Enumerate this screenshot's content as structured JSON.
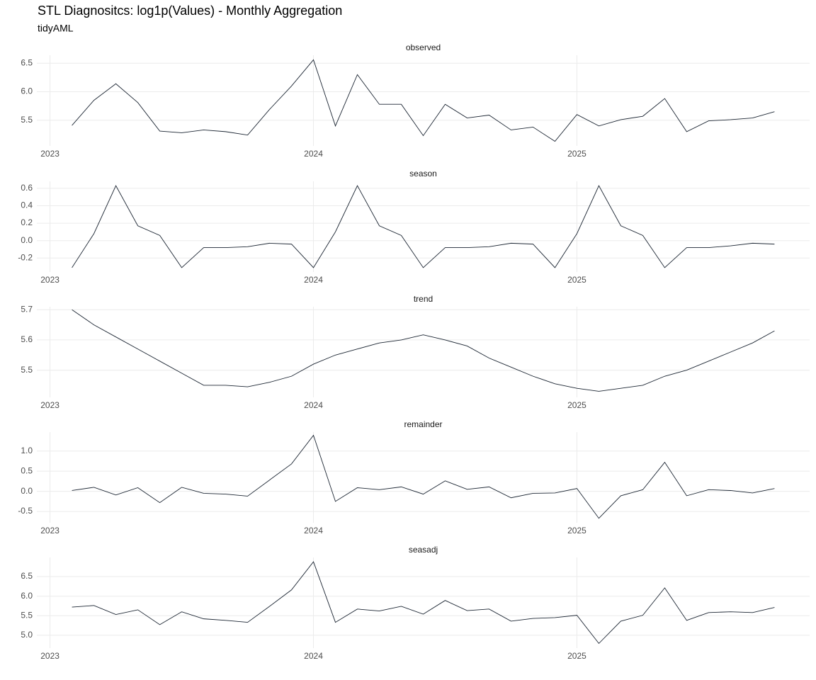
{
  "title": "STL Diagnositcs: log1p(Values) - Monthly Aggregation",
  "subtitle": "tidyAML",
  "chart_data": [
    {
      "type": "line",
      "title": "observed",
      "color": "#1c2633",
      "grid": true,
      "x": [
        "2023-02",
        "2023-03",
        "2023-04",
        "2023-05",
        "2023-06",
        "2023-07",
        "2023-08",
        "2023-09",
        "2023-10",
        "2023-11",
        "2023-12",
        "2024-01",
        "2024-02",
        "2024-03",
        "2024-04",
        "2024-05",
        "2024-06",
        "2024-07",
        "2024-08",
        "2024-09",
        "2024-10",
        "2024-11",
        "2024-12",
        "2025-01",
        "2025-02",
        "2025-03",
        "2025-04",
        "2025-05",
        "2025-06",
        "2025-07",
        "2025-08",
        "2025-09",
        "2025-10"
      ],
      "values": [
        5.41,
        5.85,
        6.14,
        5.81,
        5.31,
        5.28,
        5.33,
        5.3,
        5.24,
        5.69,
        6.1,
        6.56,
        5.4,
        6.3,
        5.78,
        5.78,
        5.23,
        5.78,
        5.54,
        5.59,
        5.33,
        5.38,
        5.13,
        5.6,
        5.4,
        5.51,
        5.57,
        5.88,
        5.3,
        5.49,
        5.51,
        5.54,
        5.65
      ],
      "xlim": [
        "2023-02",
        "2025-10"
      ],
      "xticks": [
        {
          "value": "2023-01",
          "label": "2023"
        },
        {
          "value": "2024-01",
          "label": "2024"
        },
        {
          "value": "2025-01",
          "label": "2025"
        }
      ],
      "ylim": [
        5.05,
        6.64
      ],
      "yticks": [
        {
          "value": 5.5,
          "label": "5.5"
        },
        {
          "value": 6,
          "label": "6.0"
        },
        {
          "value": 6.5,
          "label": "6.5"
        }
      ]
    },
    {
      "type": "line",
      "title": "season",
      "color": "#1c2633",
      "grid": true,
      "x": [
        "2023-02",
        "2023-03",
        "2023-04",
        "2023-05",
        "2023-06",
        "2023-07",
        "2023-08",
        "2023-09",
        "2023-10",
        "2023-11",
        "2023-12",
        "2024-01",
        "2024-02",
        "2024-03",
        "2024-04",
        "2024-05",
        "2024-06",
        "2024-07",
        "2024-08",
        "2024-09",
        "2024-10",
        "2024-11",
        "2024-12",
        "2025-01",
        "2025-02",
        "2025-03",
        "2025-04",
        "2025-05",
        "2025-06",
        "2025-07",
        "2025-08",
        "2025-09",
        "2025-10"
      ],
      "values": [
        -0.31,
        0.08,
        0.63,
        0.17,
        0.06,
        -0.31,
        -0.08,
        -0.08,
        -0.07,
        -0.03,
        -0.04,
        -0.31,
        0.1,
        0.63,
        0.17,
        0.06,
        -0.31,
        -0.08,
        -0.08,
        -0.07,
        -0.03,
        -0.04,
        -0.31,
        0.08,
        0.63,
        0.17,
        0.06,
        -0.31,
        -0.08,
        -0.08,
        -0.06,
        -0.03,
        -0.04
      ],
      "xlim": [
        "2023-02",
        "2025-10"
      ],
      "xticks": [
        {
          "value": "2023-01",
          "label": "2023"
        },
        {
          "value": "2024-01",
          "label": "2024"
        },
        {
          "value": "2025-01",
          "label": "2025"
        }
      ],
      "ylim": [
        -0.36,
        0.68
      ],
      "yticks": [
        -0.2,
        {
          "value": 0,
          "label": "0.0"
        },
        0.2,
        0.4,
        0.6
      ]
    },
    {
      "type": "line",
      "title": "trend",
      "color": "#1c2633",
      "grid": true,
      "x": [
        "2023-02",
        "2023-03",
        "2023-04",
        "2023-05",
        "2023-06",
        "2023-07",
        "2023-08",
        "2023-09",
        "2023-10",
        "2023-11",
        "2023-12",
        "2024-01",
        "2024-02",
        "2024-03",
        "2024-04",
        "2024-05",
        "2024-06",
        "2024-07",
        "2024-08",
        "2024-09",
        "2024-10",
        "2024-11",
        "2024-12",
        "2025-01",
        "2025-02",
        "2025-03",
        "2025-04",
        "2025-05",
        "2025-06",
        "2025-07",
        "2025-08",
        "2025-09",
        "2025-10"
      ],
      "values": [
        5.7,
        5.65,
        5.61,
        5.57,
        5.53,
        5.49,
        5.45,
        5.45,
        5.445,
        5.46,
        5.48,
        5.52,
        5.55,
        5.57,
        5.59,
        5.6,
        5.617,
        5.6,
        5.58,
        5.54,
        5.51,
        5.48,
        5.455,
        5.44,
        5.43,
        5.44,
        5.45,
        5.48,
        5.5,
        5.53,
        5.56,
        5.59,
        5.63
      ],
      "xlim": [
        "2023-02",
        "2025-10"
      ],
      "xticks": [
        {
          "value": "2023-01",
          "label": "2023"
        },
        {
          "value": "2024-01",
          "label": "2024"
        },
        {
          "value": "2025-01",
          "label": "2025"
        }
      ],
      "ylim": [
        5.41,
        5.71
      ],
      "yticks": [
        5.5,
        5.6,
        5.7
      ]
    },
    {
      "type": "line",
      "title": "remainder",
      "color": "#1c2633",
      "grid": true,
      "x": [
        "2023-02",
        "2023-03",
        "2023-04",
        "2023-05",
        "2023-06",
        "2023-07",
        "2023-08",
        "2023-09",
        "2023-10",
        "2023-11",
        "2023-12",
        "2024-01",
        "2024-02",
        "2024-03",
        "2024-04",
        "2024-05",
        "2024-06",
        "2024-07",
        "2024-08",
        "2024-09",
        "2024-10",
        "2024-11",
        "2024-12",
        "2025-01",
        "2025-02",
        "2025-03",
        "2025-04",
        "2025-05",
        "2025-06",
        "2025-07",
        "2025-08",
        "2025-09",
        "2025-10"
      ],
      "values": [
        0.02,
        0.1,
        -0.09,
        0.09,
        -0.28,
        0.1,
        -0.05,
        -0.07,
        -0.12,
        0.28,
        0.68,
        1.39,
        -0.25,
        0.09,
        0.04,
        0.11,
        -0.07,
        0.26,
        0.05,
        0.11,
        -0.16,
        -0.05,
        -0.04,
        0.07,
        -0.67,
        -0.11,
        0.04,
        0.72,
        -0.11,
        0.04,
        0.02,
        -0.04,
        0.07
      ],
      "xlim": [
        "2023-02",
        "2025-10"
      ],
      "xticks": [
        {
          "value": "2023-01",
          "label": "2023"
        },
        {
          "value": "2024-01",
          "label": "2024"
        },
        {
          "value": "2025-01",
          "label": "2025"
        }
      ],
      "ylim": [
        -0.78,
        1.47
      ],
      "yticks": [
        -0.5,
        {
          "value": 0,
          "label": "0.0"
        },
        0.5,
        {
          "value": 1,
          "label": "1.0"
        }
      ]
    },
    {
      "type": "line",
      "title": "seasadj",
      "color": "#1c2633",
      "grid": true,
      "x": [
        "2023-02",
        "2023-03",
        "2023-04",
        "2023-05",
        "2023-06",
        "2023-07",
        "2023-08",
        "2023-09",
        "2023-10",
        "2023-11",
        "2023-12",
        "2024-01",
        "2024-02",
        "2024-03",
        "2024-04",
        "2024-05",
        "2024-06",
        "2024-07",
        "2024-08",
        "2024-09",
        "2024-10",
        "2024-11",
        "2024-12",
        "2025-01",
        "2025-02",
        "2025-03",
        "2025-04",
        "2025-05",
        "2025-06",
        "2025-07",
        "2025-08",
        "2025-09",
        "2025-10"
      ],
      "values": [
        5.72,
        5.76,
        5.53,
        5.65,
        5.27,
        5.6,
        5.42,
        5.38,
        5.33,
        5.74,
        6.16,
        6.88,
        5.33,
        5.67,
        5.62,
        5.74,
        5.54,
        5.89,
        5.63,
        5.67,
        5.36,
        5.43,
        5.45,
        5.51,
        4.79,
        5.36,
        5.51,
        6.21,
        5.38,
        5.58,
        5.6,
        5.58,
        5.71
      ],
      "xlim": [
        "2023-02",
        "2025-10"
      ],
      "xticks": [
        {
          "value": "2023-01",
          "label": "2023"
        },
        {
          "value": "2024-01",
          "label": "2024"
        },
        {
          "value": "2025-01",
          "label": "2025"
        }
      ],
      "ylim": [
        4.67,
        6.99
      ],
      "yticks": [
        {
          "value": 5,
          "label": "5.0"
        },
        {
          "value": 5.5,
          "label": "5.5"
        },
        {
          "value": 6,
          "label": "6.0"
        },
        {
          "value": 6.5,
          "label": "6.5"
        }
      ]
    }
  ]
}
